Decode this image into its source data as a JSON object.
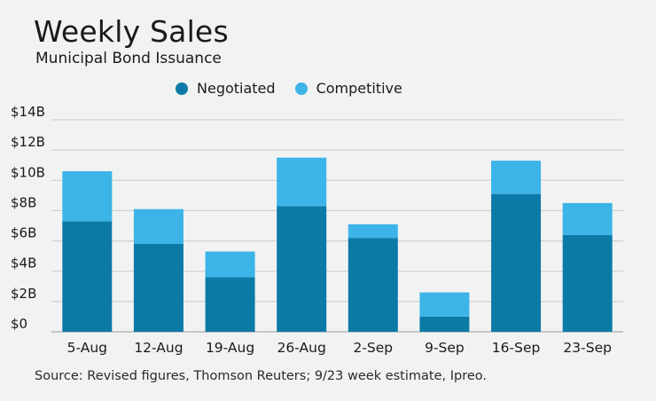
{
  "chart_data": {
    "type": "bar",
    "stacked": true,
    "title": "Weekly Sales",
    "subtitle": "Municipal Bond Issuance",
    "source": "Source: Revised figures, Thomson Reuters; 9/23 week estimate, Ipreo.",
    "categories": [
      "5-Aug",
      "12-Aug",
      "19-Aug",
      "26-Aug",
      "2-Sep",
      "9-Sep",
      "16-Sep",
      "23-Sep"
    ],
    "series": [
      {
        "name": "Negotiated",
        "color": "#0b7aa6",
        "values": [
          7.3,
          5.8,
          3.6,
          8.3,
          6.2,
          1.0,
          9.1,
          6.4
        ]
      },
      {
        "name": "Competitive",
        "color": "#3cb4e7",
        "values": [
          3.3,
          2.3,
          1.7,
          3.2,
          0.9,
          1.6,
          2.2,
          2.1
        ]
      }
    ],
    "y_ticks": [
      "$0",
      "$2B",
      "$4B",
      "$6B",
      "$8B",
      "$10B",
      "$12B",
      "$14B"
    ],
    "ylim": [
      0,
      14
    ],
    "grid": true,
    "legend_position": "top"
  }
}
